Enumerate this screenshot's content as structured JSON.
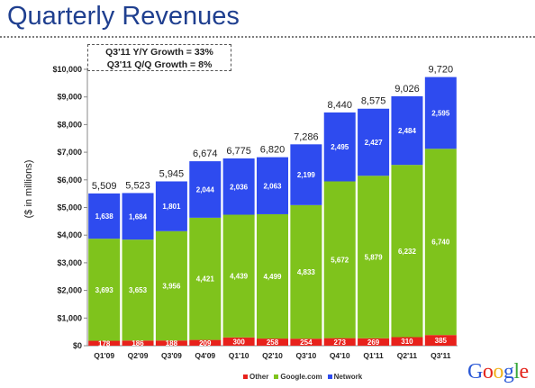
{
  "page": {
    "title": "Quarterly Revenues"
  },
  "growth": {
    "line1": "Q3'11 Y/Y Growth = 33%",
    "line2": "Q3'11 Q/Q Growth = 8%"
  },
  "colors": {
    "title": "#1f3f8f",
    "other": "#e8211b",
    "google": "#7fc31c",
    "network": "#2e4bef"
  },
  "logo": {
    "text": "Google",
    "letters": [
      "G",
      "o",
      "o",
      "g",
      "l",
      "e"
    ],
    "letter_colors": [
      "#2b59d6",
      "#e3241b",
      "#f1b21c",
      "#2b59d6",
      "#38a83c",
      "#e3241b"
    ]
  },
  "chart_data": {
    "type": "bar",
    "stacked": true,
    "categories": [
      "Q1'09",
      "Q2'09",
      "Q3'09",
      "Q4'09",
      "Q1'10",
      "Q2'10",
      "Q3'10",
      "Q4'10",
      "Q1'11",
      "Q2'11",
      "Q3'11"
    ],
    "series": [
      {
        "name": "Other",
        "color": "#e8211b",
        "values": [
          178,
          186,
          188,
          209,
          300,
          258,
          254,
          273,
          269,
          310,
          385
        ],
        "labels": [
          "178",
          "186",
          "188",
          "209",
          "300",
          "258",
          "254",
          "273",
          "269",
          "310",
          "385"
        ]
      },
      {
        "name": "Google.com",
        "color": "#7fc31c",
        "values": [
          3693,
          3653,
          3956,
          4421,
          4439,
          4499,
          4833,
          5672,
          5879,
          6232,
          6740
        ],
        "labels": [
          "3,693",
          "3,653",
          "3,956",
          "4,421",
          "4,439",
          "4,499",
          "4,833",
          "5,672",
          "5,879",
          "6,232",
          "6,740"
        ]
      },
      {
        "name": "Network",
        "color": "#2e4bef",
        "values": [
          1638,
          1684,
          1801,
          2044,
          2036,
          2063,
          2199,
          2495,
          2427,
          2484,
          2595
        ],
        "labels": [
          "1,638",
          "1,684",
          "1,801",
          "2,044",
          "2,036",
          "2,063",
          "2,199",
          "2,495",
          "2,427",
          "2,484",
          "2,595"
        ]
      }
    ],
    "totals": [
      5509,
      5523,
      5945,
      6674,
      6775,
      6820,
      7286,
      8440,
      8575,
      9026,
      9720
    ],
    "total_labels": [
      "5,509",
      "5,523",
      "5,945",
      "6,674",
      "6,775",
      "6,820",
      "7,286",
      "8,440",
      "8,575",
      "9,026",
      "9,720"
    ],
    "ylabel": "($ in millions)",
    "ylim": [
      0,
      10000
    ],
    "yticks": [
      0,
      1000,
      2000,
      3000,
      4000,
      5000,
      6000,
      7000,
      8000,
      9000,
      10000
    ],
    "ytick_labels": [
      "$0",
      "$1,000",
      "$2,000",
      "$3,000",
      "$4,000",
      "$5,000",
      "$6,000",
      "$7,000",
      "$8,000",
      "$9,000",
      "$10,000"
    ],
    "grid": false,
    "legend_position": "bottom-center"
  }
}
